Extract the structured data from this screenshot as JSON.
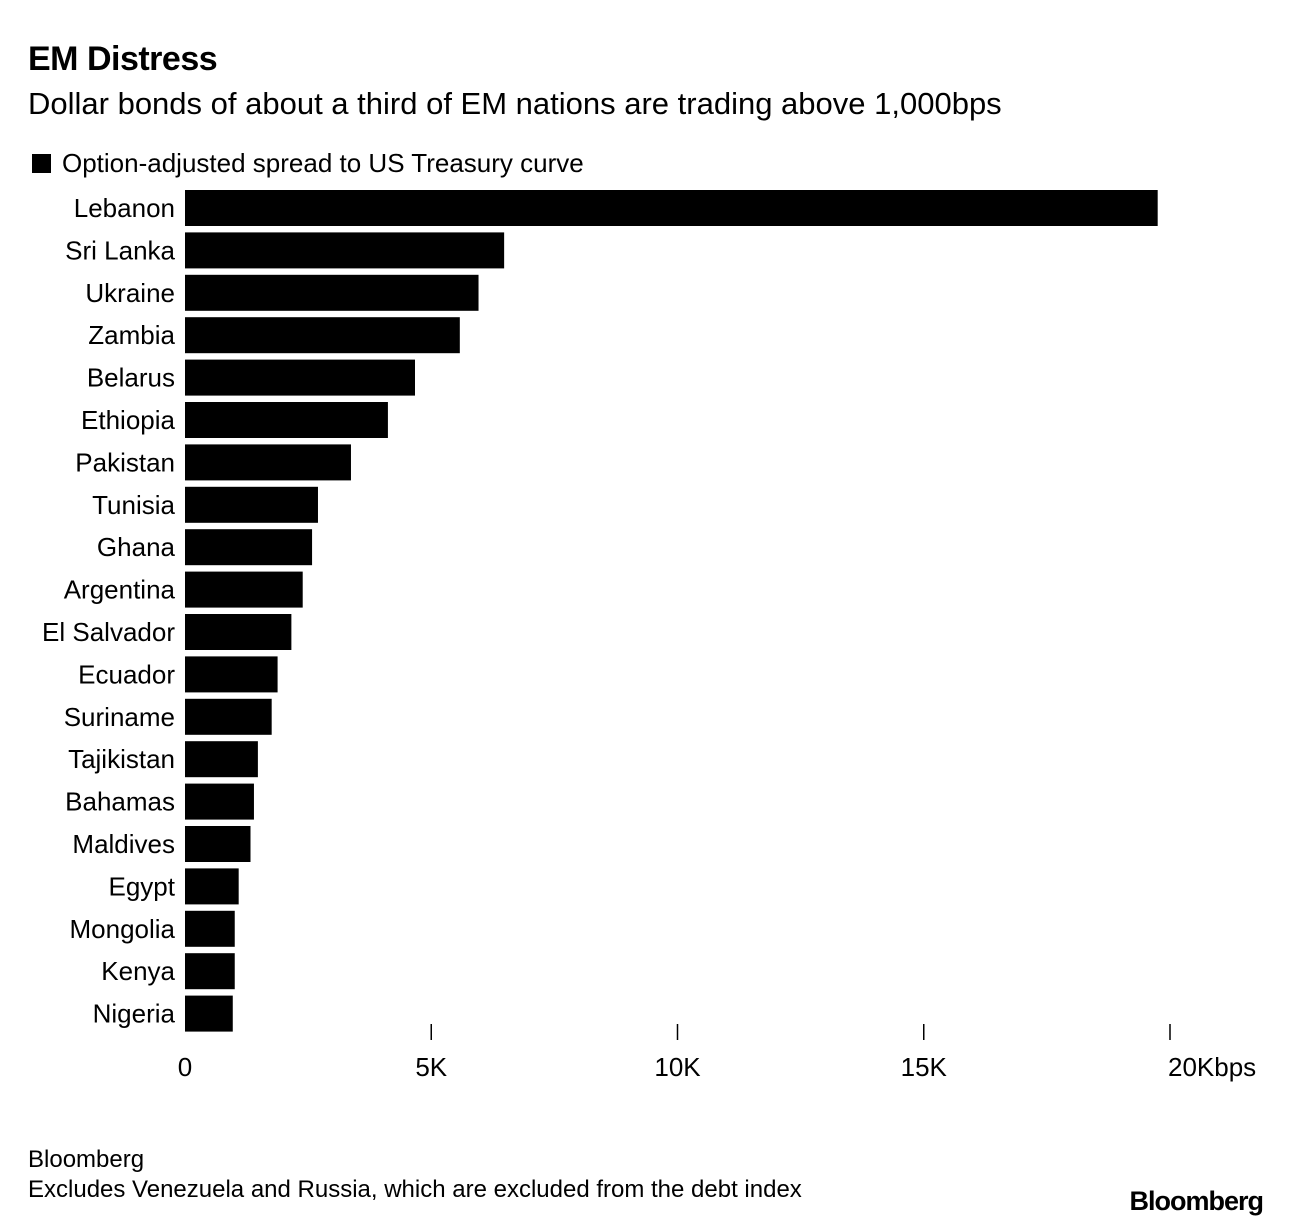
{
  "title": "EM Distress",
  "subtitle": "Dollar bonds of about a third of EM nations are trading above 1,000bps",
  "source": "Bloomberg",
  "note": "Excludes Venezuela and Russia, which are excluded from the debt index",
  "brand": "Bloomberg",
  "colors": {
    "bar": "#000000",
    "background": "#ffffff"
  },
  "chart_data": {
    "type": "bar",
    "orientation": "horizontal",
    "series": [
      {
        "name": "Option-adjusted spread to US Treasury curve",
        "values": [
          19750,
          6480,
          5960,
          5580,
          4670,
          4120,
          3370,
          2700,
          2580,
          2390,
          2160,
          1880,
          1760,
          1480,
          1400,
          1330,
          1090,
          1010,
          1010,
          970
        ]
      }
    ],
    "categories": [
      "Lebanon",
      "Sri Lanka",
      "Ukraine",
      "Zambia",
      "Belarus",
      "Ethiopia",
      "Pakistan",
      "Tunisia",
      "Ghana",
      "Argentina",
      "El Salvador",
      "Ecuador",
      "Suriname",
      "Tajikistan",
      "Bahamas",
      "Maldives",
      "Egypt",
      "Mongolia",
      "Kenya",
      "Nigeria"
    ],
    "xlim": [
      0,
      20000
    ],
    "xticks": [
      0,
      5000,
      10000,
      15000,
      20000
    ],
    "xtick_labels": [
      "0",
      "5K",
      "10K",
      "15K",
      "20Kbps"
    ],
    "legend": "top-left",
    "grid": false
  }
}
